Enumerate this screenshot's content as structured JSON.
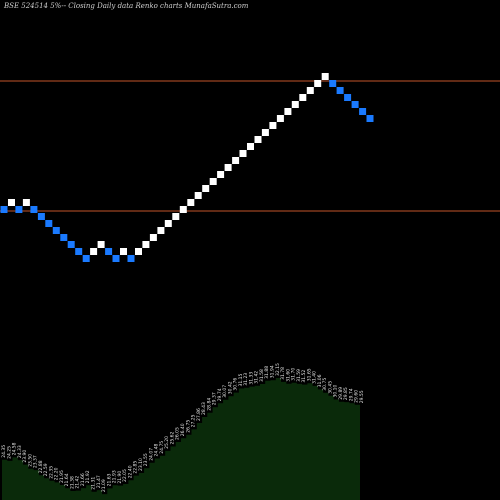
{
  "chart_data": {
    "type": "renko",
    "title": "BSE 524514 5%-- Closing Daily data Renko charts MunafaSutra.com",
    "up_color": "#ffffff",
    "down_color": "#1a7aff",
    "reference_lines": [
      {
        "color": "#c2542a",
        "value": 31.4
      },
      {
        "color": "#c2542a",
        "value": 24.9
      }
    ],
    "bricks": [
      {
        "dir": "down",
        "close": 24.9
      },
      {
        "dir": "up",
        "close": 25.25
      },
      {
        "dir": "down",
        "close": 24.9
      },
      {
        "dir": "up",
        "close": 25.25
      },
      {
        "dir": "down",
        "close": 24.9
      },
      {
        "dir": "down",
        "close": 24.55
      },
      {
        "dir": "down",
        "close": 24.2
      },
      {
        "dir": "down",
        "close": 23.85
      },
      {
        "dir": "down",
        "close": 23.5
      },
      {
        "dir": "down",
        "close": 23.15
      },
      {
        "dir": "down",
        "close": 22.8
      },
      {
        "dir": "down",
        "close": 22.45
      },
      {
        "dir": "up",
        "close": 22.8
      },
      {
        "dir": "up",
        "close": 23.15
      },
      {
        "dir": "down",
        "close": 22.8
      },
      {
        "dir": "down",
        "close": 22.45
      },
      {
        "dir": "up",
        "close": 22.8
      },
      {
        "dir": "down",
        "close": 22.45
      },
      {
        "dir": "up",
        "close": 22.8
      },
      {
        "dir": "up",
        "close": 23.15
      },
      {
        "dir": "up",
        "close": 23.5
      },
      {
        "dir": "up",
        "close": 23.85
      },
      {
        "dir": "up",
        "close": 24.2
      },
      {
        "dir": "up",
        "close": 24.55
      },
      {
        "dir": "up",
        "close": 24.9
      },
      {
        "dir": "up",
        "close": 25.25
      },
      {
        "dir": "up",
        "close": 25.6
      },
      {
        "dir": "up",
        "close": 25.95
      },
      {
        "dir": "up",
        "close": 26.3
      },
      {
        "dir": "up",
        "close": 26.65
      },
      {
        "dir": "up",
        "close": 27.0
      },
      {
        "dir": "up",
        "close": 27.35
      },
      {
        "dir": "up",
        "close": 27.7
      },
      {
        "dir": "up",
        "close": 28.05
      },
      {
        "dir": "up",
        "close": 28.4
      },
      {
        "dir": "up",
        "close": 28.75
      },
      {
        "dir": "up",
        "close": 29.1
      },
      {
        "dir": "up",
        "close": 29.45
      },
      {
        "dir": "up",
        "close": 29.8
      },
      {
        "dir": "up",
        "close": 30.15
      },
      {
        "dir": "up",
        "close": 30.5
      },
      {
        "dir": "up",
        "close": 30.85
      },
      {
        "dir": "up",
        "close": 31.2
      },
      {
        "dir": "up",
        "close": 31.55
      },
      {
        "dir": "down",
        "close": 31.2
      },
      {
        "dir": "down",
        "close": 30.85
      },
      {
        "dir": "down",
        "close": 30.5
      },
      {
        "dir": "down",
        "close": 30.15
      },
      {
        "dir": "down",
        "close": 29.8
      },
      {
        "dir": "down",
        "close": 29.45
      }
    ],
    "labels": [
      "24.35",
      "24.25",
      "24.58",
      "24.33",
      "23.90",
      "23.50",
      "23.37",
      "22.88",
      "22.59",
      "22.35",
      "22.20",
      "21.95",
      "21.64",
      "21.38",
      "21.42",
      "21.66",
      "21.92",
      "21.31",
      "21.47",
      "21.09",
      "21.63",
      "21.93",
      "21.90",
      "22.05",
      "22.40",
      "22.85",
      "23.10",
      "23.55",
      "24.07",
      "24.48",
      "24.75",
      "25.20",
      "25.62",
      "26.05",
      "26.40",
      "26.75",
      "27.25",
      "27.86",
      "28.43",
      "28.84",
      "29.37",
      "29.74",
      "30.07",
      "30.42",
      "30.76",
      "31.15",
      "31.23",
      "31.33",
      "31.42",
      "31.58",
      "31.88",
      "31.94",
      "32.15",
      "31.78",
      "31.60",
      "31.70",
      "31.59",
      "31.52",
      "31.65",
      "31.40",
      "31.06",
      "30.75",
      "30.45",
      "30.10",
      "29.89",
      "29.85",
      "29.74",
      "29.60",
      "29.55"
    ]
  }
}
